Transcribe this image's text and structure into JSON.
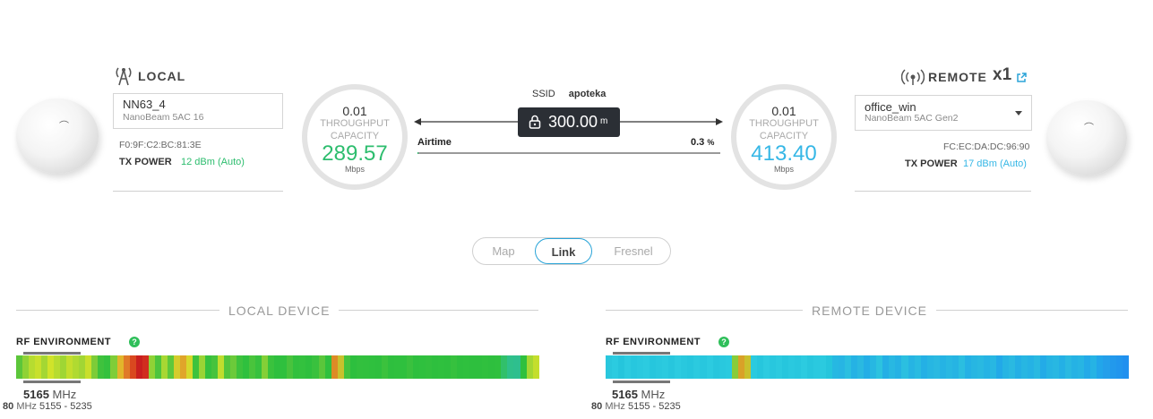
{
  "local": {
    "title": "LOCAL",
    "icon": "antenna-tower-icon",
    "device_name": "NN63_4",
    "device_model": "NanoBeam 5AC 16",
    "mac": "F0:9F:C2:BC:81:3E",
    "tx_power_label": "TX POWER",
    "tx_power_value": "12 dBm (Auto)",
    "tx_color": "#2dbd6e",
    "throughput": "0.01",
    "throughput_label": "THROUGHPUT",
    "capacity_label": "CAPACITY",
    "capacity": "289.57",
    "capacity_color": "#2dbd6e",
    "unit": "Mbps",
    "dish_logo": "⌒"
  },
  "remote": {
    "title": "REMOTE",
    "count": "x1",
    "icon": "broadcast-icon",
    "device_name": "office_win",
    "device_model": "NanoBeam 5AC Gen2",
    "mac": "FC:EC:DA:DC:96:90",
    "tx_power_label": "TX POWER",
    "tx_power_value": "17 dBm (Auto)",
    "tx_color": "#36b7e6",
    "throughput": "0.01",
    "throughput_label": "THROUGHPUT",
    "capacity_label": "CAPACITY",
    "capacity": "413.40",
    "capacity_color": "#36b7e6",
    "unit": "Mbps",
    "dish_logo": "⌒"
  },
  "link": {
    "ssid_label": "SSID",
    "ssid": "apoteka",
    "distance": "300.00",
    "distance_unit": "m",
    "airtime_label": "Airtime",
    "airtime_value": "0.3",
    "airtime_unit": "%",
    "airtime_fraction": 0.003
  },
  "tabs": [
    {
      "label": "Map",
      "active": false
    },
    {
      "label": "Link",
      "active": true
    },
    {
      "label": "Fresnel",
      "active": false
    }
  ],
  "local_device_title": "LOCAL DEVICE",
  "remote_device_title": "REMOTE DEVICE",
  "rf_environment_label": "RF ENVIRONMENT",
  "help_glyph": "?",
  "local_rf": {
    "freq_value": "5165",
    "freq_unit": "MHz",
    "width_value": "80",
    "width_unit": "MHz",
    "range": "5155 - 5235"
  },
  "remote_rf": {
    "freq_value": "5165",
    "freq_unit": "MHz",
    "width_value": "80",
    "width_unit": "MHz",
    "range": "5155 - 5235"
  },
  "local_spectrum": [
    "#5cc63a",
    "#8fd236",
    "#b6dc30",
    "#c8e02c",
    "#a4d733",
    "#d0e32a",
    "#b7dc30",
    "#9fd634",
    "#c3de2d",
    "#b0da31",
    "#a2d634",
    "#c9df2b",
    "#7dcc38",
    "#3fc23d",
    "#34c13e",
    "#7fcd38",
    "#e2b52b",
    "#e07a28",
    "#d9481f",
    "#c91f1f",
    "#d12d1f",
    "#8fd236",
    "#4dc43d",
    "#a8d733",
    "#5ec83b",
    "#d4cc2c",
    "#e0a52a",
    "#d6d82b",
    "#3ec23d",
    "#9ad435",
    "#36c13e",
    "#46c33d",
    "#bfdd2e",
    "#52c53c",
    "#6bca3a",
    "#3dc23d",
    "#2fc03e",
    "#49c43c",
    "#37c13e",
    "#84cf37",
    "#3ac23d",
    "#2ebf3e",
    "#2fc03e",
    "#48c33d",
    "#31c03e",
    "#33c13e",
    "#2ebf3e",
    "#39c13e",
    "#5ac63b",
    "#2fc03e",
    "#dd8b26",
    "#c9c12d",
    "#45c33d",
    "#2dbf3e",
    "#32c03e",
    "#31c03e",
    "#2fc03e",
    "#2ebf3e",
    "#3bc23d",
    "#2ebf3e",
    "#2fc03e",
    "#2fc03e",
    "#3ac13e",
    "#2ebf3e",
    "#2fc03e",
    "#32c03e",
    "#2ebf3e",
    "#2fc03e",
    "#2ebf3e",
    "#36c13e",
    "#2ebf3e",
    "#2fc03e",
    "#2ebf3e",
    "#2ebf3e",
    "#30c03e",
    "#2ebf3e",
    "#2fc03e",
    "#31c06a",
    "#2fc08a",
    "#2ebf8e",
    "#2fc03e",
    "#a4d733",
    "#c4de2d"
  ],
  "remote_spectrum": [
    "#29c7dd",
    "#2bcbe0",
    "#25c5dc",
    "#2ccbe0",
    "#27c7de",
    "#2ac9df",
    "#2ccbe0",
    "#26c6dd",
    "#29c8de",
    "#2bcadf",
    "#27c6dd",
    "#2ccbe0",
    "#29c8de",
    "#26c6dd",
    "#2bcadf",
    "#28c7de",
    "#2ccbe0",
    "#27c6dd",
    "#29c8de",
    "#2acadf",
    "#88cc3a",
    "#d9a128",
    "#c9c02d",
    "#2bcadf",
    "#26c6dd",
    "#2ccbe0",
    "#28c7de",
    "#2bcadf",
    "#26c6dd",
    "#2ac9df",
    "#28c7de",
    "#2ccbe0",
    "#27c6dd",
    "#2ac9df",
    "#2bcadf",
    "#25c5dc",
    "#26b8e2",
    "#27b5e3",
    "#2bbfe0",
    "#25b2e4",
    "#2ab9e1",
    "#23aee6",
    "#27b7e2",
    "#2cc3df",
    "#24afe5",
    "#28b8e2",
    "#25b2e4",
    "#2bbfe0",
    "#26b4e3",
    "#29bbe1",
    "#24b0e5",
    "#27b6e2",
    "#2ab9e1",
    "#25b3e4",
    "#28b8e2",
    "#26b4e3",
    "#2bbee0",
    "#24b1e5",
    "#27b6e2",
    "#29b9e1",
    "#25b3e4",
    "#28b7e2",
    "#22a9e8",
    "#26b4e3",
    "#2ab9e1",
    "#24afe5",
    "#27b6e2",
    "#25b2e4",
    "#29b9e1",
    "#23abe7",
    "#26b4e3",
    "#28b7e2",
    "#24b0e5",
    "#2ab9e1",
    "#25b2e4",
    "#27b5e3",
    "#23aae8",
    "#26b3e4",
    "#22a6ea",
    "#249fea",
    "#2299ec",
    "#2195ed",
    "#2090ef"
  ]
}
